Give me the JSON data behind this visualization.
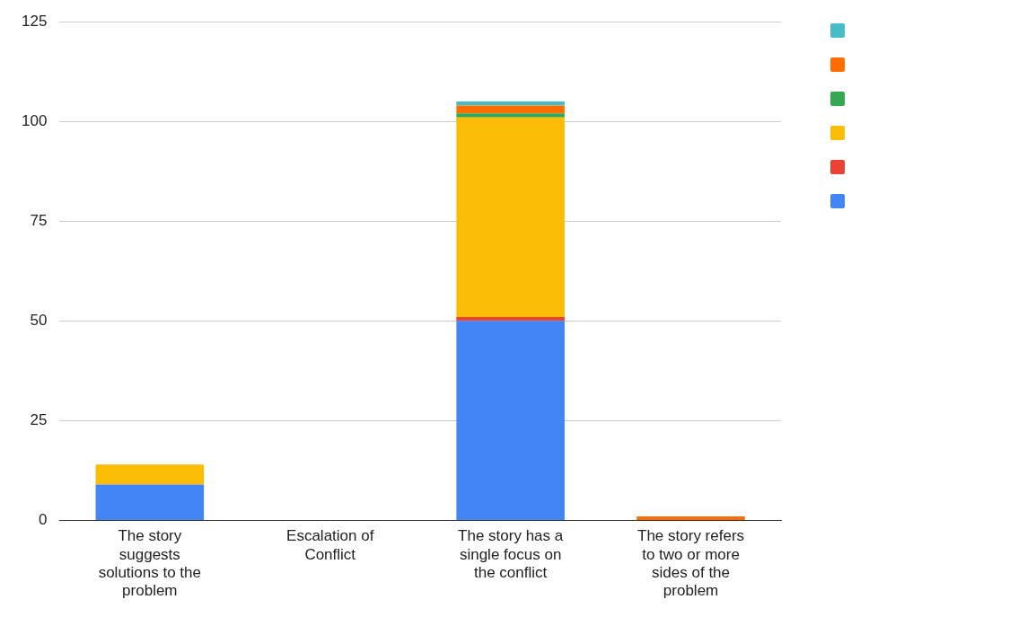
{
  "chart_data": {
    "type": "bar",
    "stacked": true,
    "categories": [
      "The story suggests solutions to the problem",
      "Escalation of Conflict",
      "The story has a single focus on the conflict",
      "The story refers to two or more sides of the problem"
    ],
    "series": [
      {
        "color": "#4285f4",
        "values": [
          9,
          0,
          50,
          0
        ]
      },
      {
        "color": "#ea4335",
        "values": [
          0,
          0,
          1,
          0
        ]
      },
      {
        "color": "#fbbc04",
        "values": [
          5,
          0,
          50,
          0
        ]
      },
      {
        "color": "#34a853",
        "values": [
          0,
          0,
          1,
          0
        ]
      },
      {
        "color": "#ff6d01",
        "values": [
          0,
          0,
          2,
          1
        ]
      },
      {
        "color": "#46bdc6",
        "values": [
          0,
          0,
          1,
          0
        ]
      }
    ],
    "ylim": [
      0,
      125
    ],
    "yticks": [
      0,
      25,
      50,
      75,
      100,
      125
    ],
    "grid": "y"
  }
}
